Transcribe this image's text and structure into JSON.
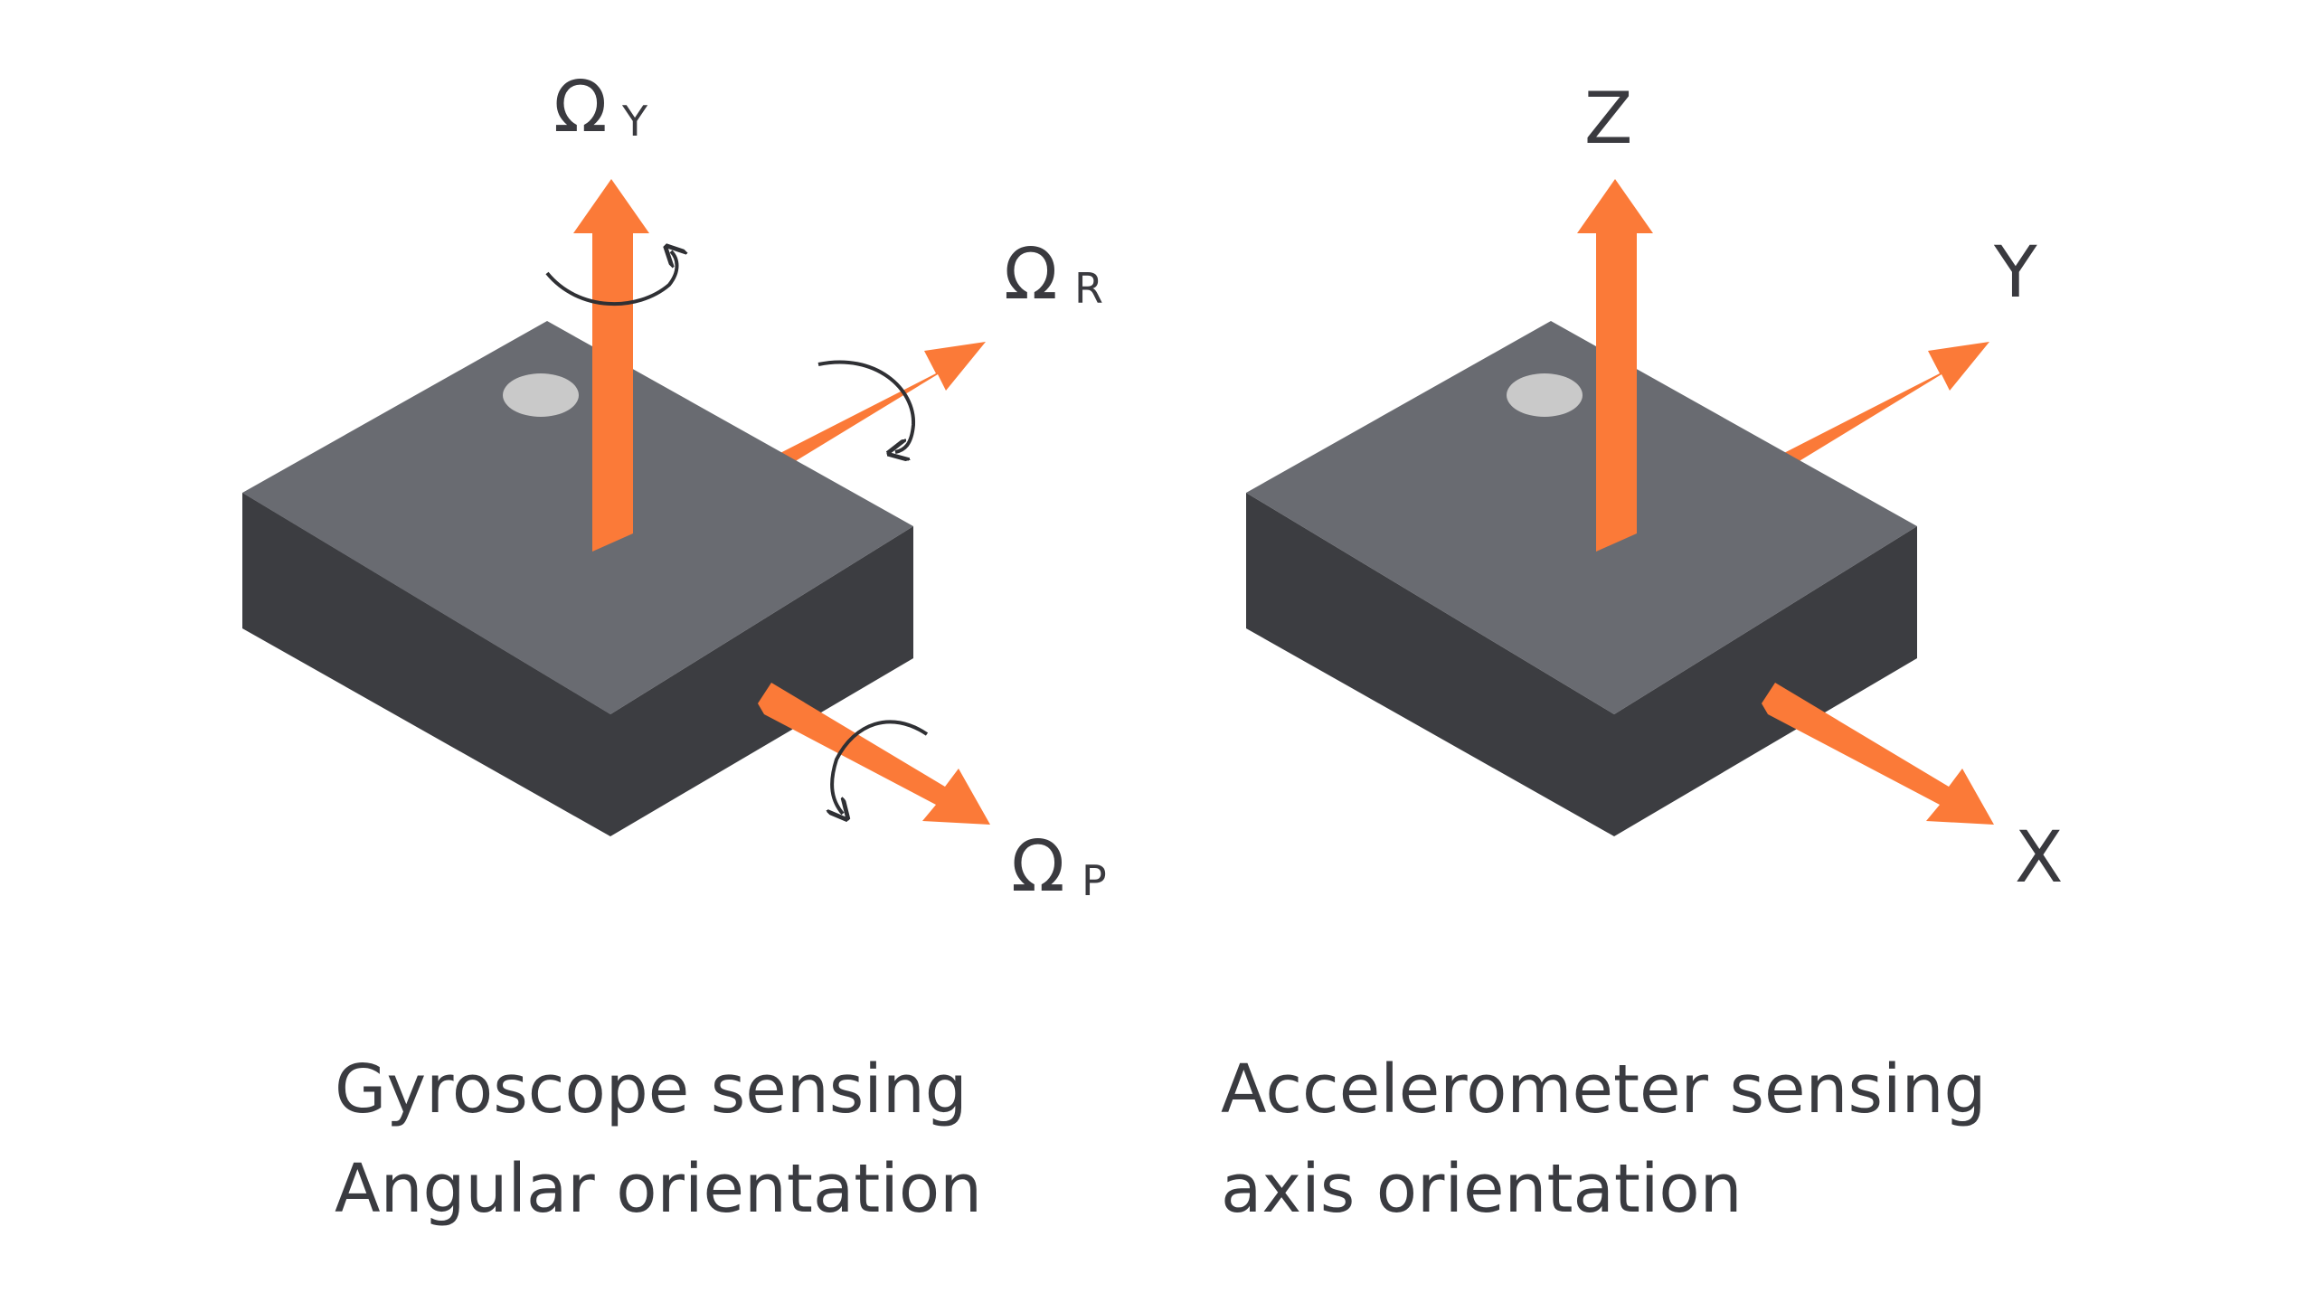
{
  "colors": {
    "arrow": "#fb7a38",
    "box_top": "#696b71",
    "box_front": "#3b3c40",
    "box_side": "#3e3f43",
    "dot": "#c8c8c8",
    "text": "#3a3a3f",
    "rotation_stroke": "#2f3034"
  },
  "gyroscope": {
    "caption_line1": "Gyroscope sensing",
    "caption_line2": "Angular orientation",
    "yaw": {
      "omega": "Ω",
      "sub": "Y"
    },
    "roll": {
      "omega": "Ω",
      "sub": "R"
    },
    "pitch": {
      "omega": "Ω",
      "sub": "P"
    }
  },
  "accelerometer": {
    "caption_line1": "Accelerometer sensing",
    "caption_line2": "axis orientation",
    "z": "Z",
    "y": "Y",
    "x": "X"
  }
}
